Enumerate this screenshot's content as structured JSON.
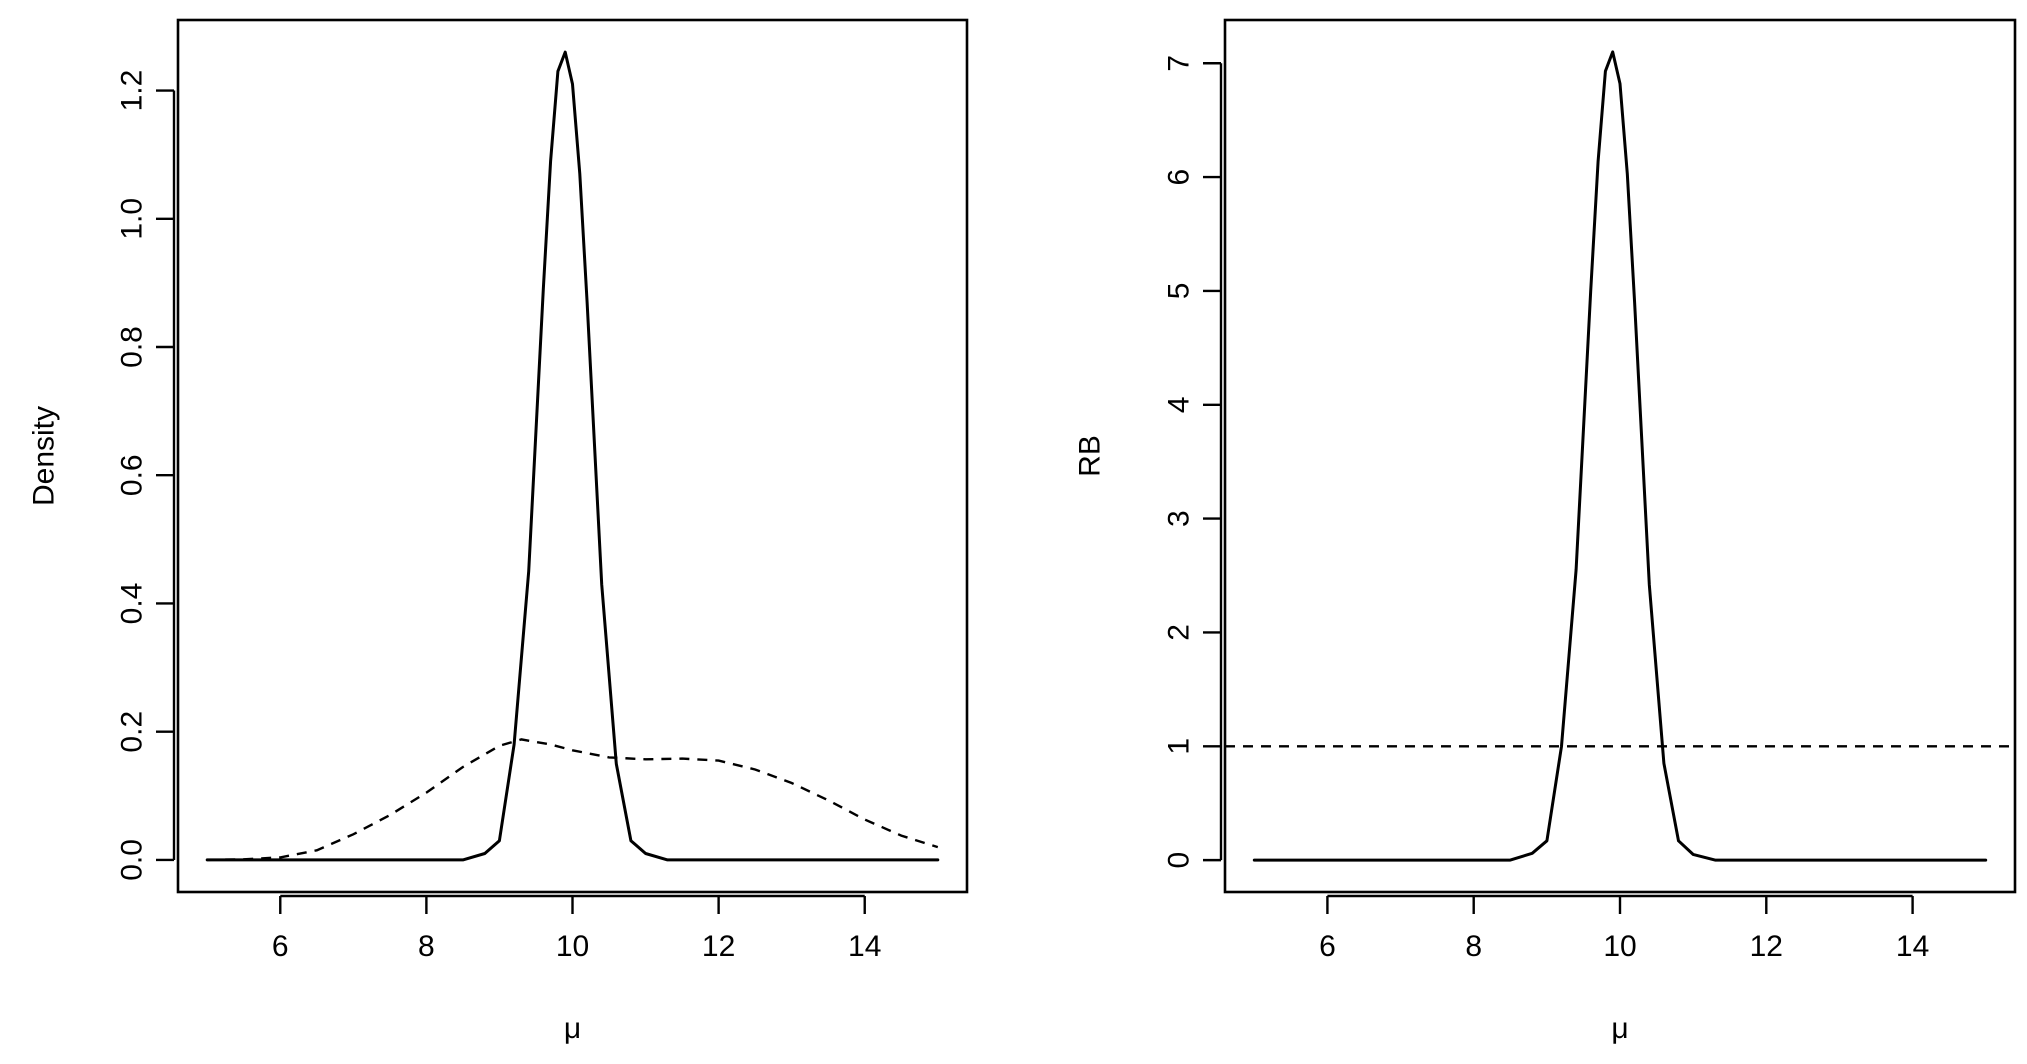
{
  "chart_data": [
    {
      "type": "line",
      "xlabel": "μ",
      "ylabel": "Density",
      "xlim": [
        4.6,
        15.4
      ],
      "ylim": [
        -0.05,
        1.31
      ],
      "xticks": [
        6,
        8,
        10,
        12,
        14
      ],
      "yticks": [
        0.0,
        0.2,
        0.4,
        0.6,
        0.8,
        1.0,
        1.2
      ],
      "ytick_labels": [
        "0.0",
        "0.2",
        "0.4",
        "0.6",
        "0.8",
        "1.0",
        "1.2"
      ],
      "grid": false,
      "series": [
        {
          "style": "solid",
          "x": [
            5.0,
            8.5,
            8.8,
            9.0,
            9.2,
            9.4,
            9.6,
            9.7,
            9.8,
            9.9,
            10.0,
            10.1,
            10.2,
            10.4,
            10.6,
            10.8,
            11.0,
            11.3,
            15.0
          ],
          "y": [
            0.0,
            0.0,
            0.01,
            0.03,
            0.18,
            0.45,
            0.89,
            1.09,
            1.23,
            1.26,
            1.21,
            1.07,
            0.87,
            0.43,
            0.15,
            0.03,
            0.01,
            0.0,
            0.0
          ]
        },
        {
          "style": "dashed",
          "x": [
            5.0,
            5.5,
            6.0,
            6.5,
            7.0,
            7.5,
            8.0,
            8.5,
            9.0,
            9.3,
            9.7,
            10.0,
            10.5,
            11.0,
            11.5,
            12.0,
            12.5,
            13.0,
            13.5,
            14.0,
            14.5,
            15.0
          ],
          "y": [
            0.0,
            0.001,
            0.004,
            0.015,
            0.04,
            0.07,
            0.105,
            0.145,
            0.178,
            0.188,
            0.18,
            0.171,
            0.16,
            0.157,
            0.158,
            0.155,
            0.141,
            0.12,
            0.093,
            0.063,
            0.038,
            0.02
          ]
        }
      ]
    },
    {
      "type": "line",
      "xlabel": "μ",
      "ylabel": "RB",
      "xlim": [
        4.6,
        15.4
      ],
      "ylim": [
        -0.28,
        7.38
      ],
      "xticks": [
        6,
        8,
        10,
        12,
        14
      ],
      "yticks": [
        0,
        1,
        2,
        3,
        4,
        5,
        6,
        7
      ],
      "ytick_labels": [
        "0",
        "1",
        "2",
        "3",
        "4",
        "5",
        "6",
        "7"
      ],
      "grid": false,
      "series": [
        {
          "style": "solid",
          "x": [
            5.0,
            8.5,
            8.8,
            9.0,
            9.2,
            9.4,
            9.6,
            9.7,
            9.8,
            9.9,
            10.0,
            10.1,
            10.2,
            10.4,
            10.6,
            10.8,
            11.0,
            11.3,
            15.0
          ],
          "y": [
            0.0,
            0.0,
            0.06,
            0.17,
            1.0,
            2.55,
            5.0,
            6.14,
            6.93,
            7.1,
            6.82,
            6.03,
            4.9,
            2.42,
            0.85,
            0.17,
            0.05,
            0.0,
            0.0
          ]
        },
        {
          "style": "dashed",
          "x": [
            4.6,
            15.4
          ],
          "y": [
            1.0,
            1.0
          ]
        }
      ]
    }
  ]
}
